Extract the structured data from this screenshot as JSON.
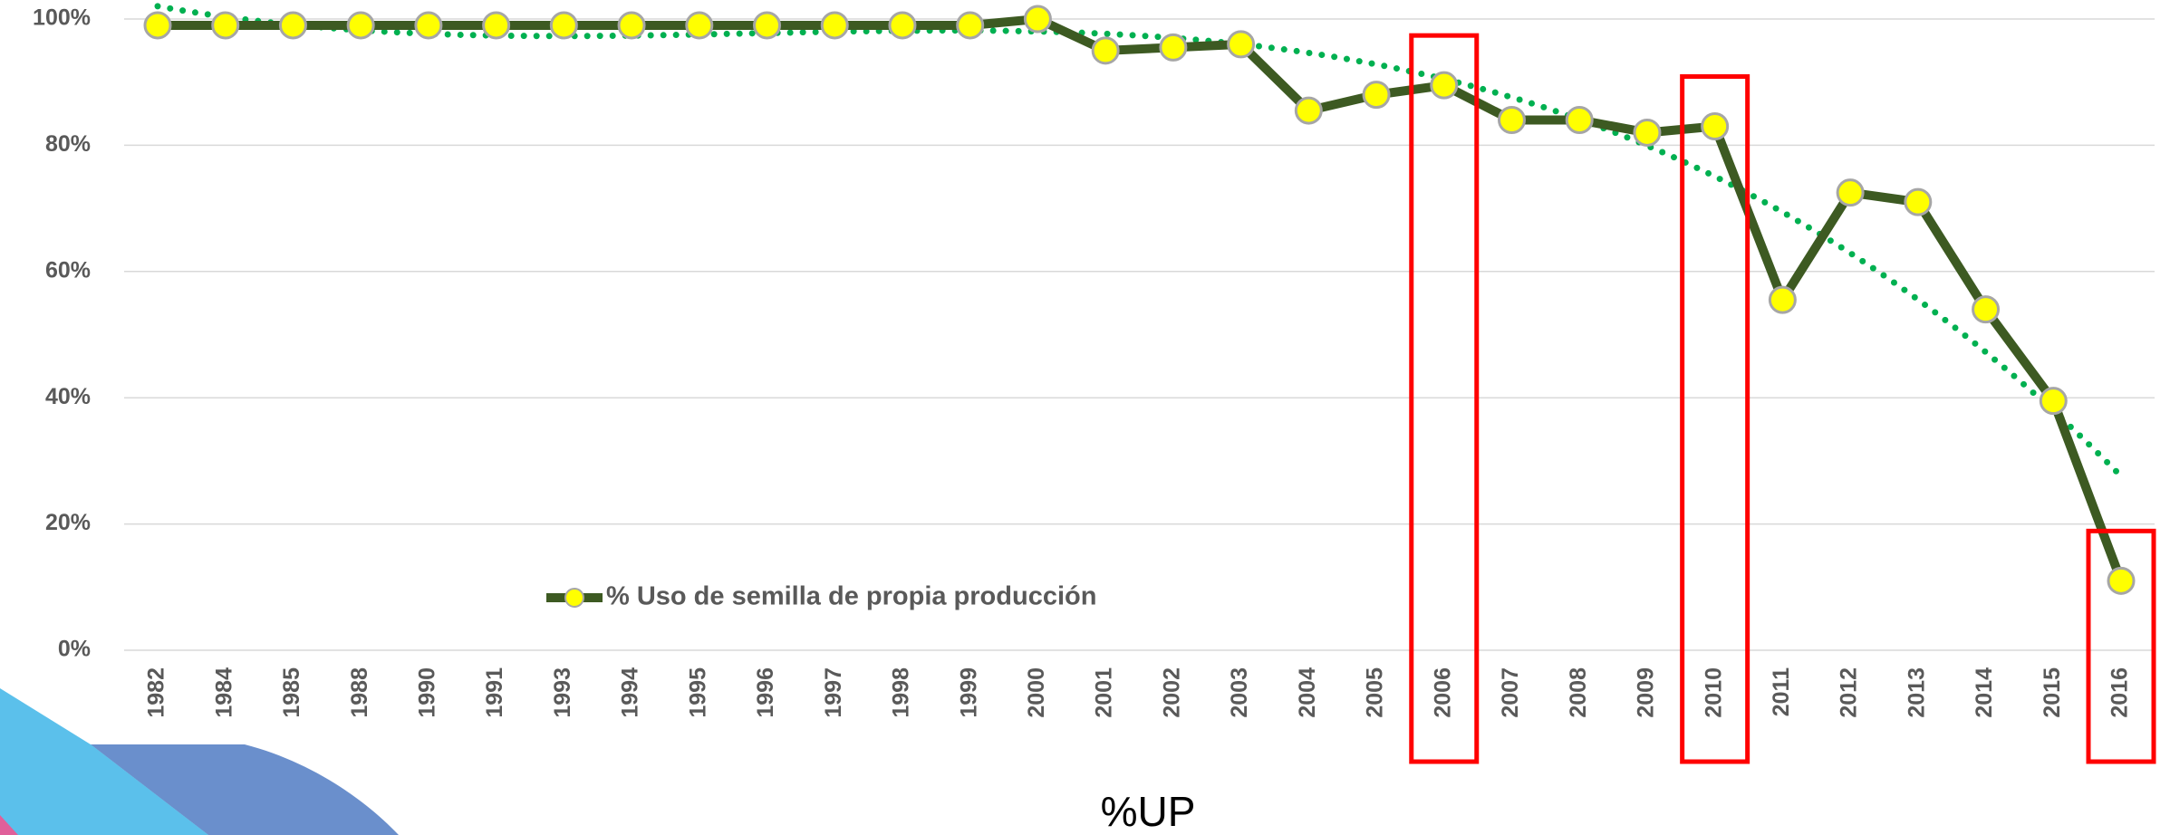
{
  "chart_data": {
    "type": "line",
    "categories": [
      "1982",
      "1984",
      "1985",
      "1988",
      "1990",
      "1991",
      "1993",
      "1994",
      "1995",
      "1996",
      "1997",
      "1998",
      "1999",
      "2000",
      "2001",
      "2002",
      "2003",
      "2004",
      "2005",
      "2006",
      "2007",
      "2008",
      "2009",
      "2010",
      "2011",
      "2012",
      "2013",
      "2014",
      "2015",
      "2016"
    ],
    "series": [
      {
        "name": "% Uso de semilla de propia producción",
        "color": "#3d5a22",
        "values": [
          99,
          99,
          99,
          99,
          99,
          99,
          99,
          99,
          99,
          99,
          99,
          99,
          99,
          100,
          95,
          95.5,
          96,
          85.5,
          88,
          89.5,
          84,
          84,
          82,
          83,
          55.5,
          72.5,
          71,
          54,
          39.5,
          11
        ]
      }
    ],
    "ylim": [
      0,
      100
    ],
    "yticks": [
      {
        "value": 0,
        "label": "0%"
      },
      {
        "value": 20,
        "label": "20%"
      },
      {
        "value": 40,
        "label": "40%"
      },
      {
        "value": 60,
        "label": "60%"
      },
      {
        "value": 80,
        "label": "80%"
      },
      {
        "value": 100,
        "label": "100%"
      }
    ],
    "grid": true,
    "trendline": true,
    "highlight": [
      "2006",
      "2010",
      "2016"
    ],
    "caption": "%UP"
  }
}
